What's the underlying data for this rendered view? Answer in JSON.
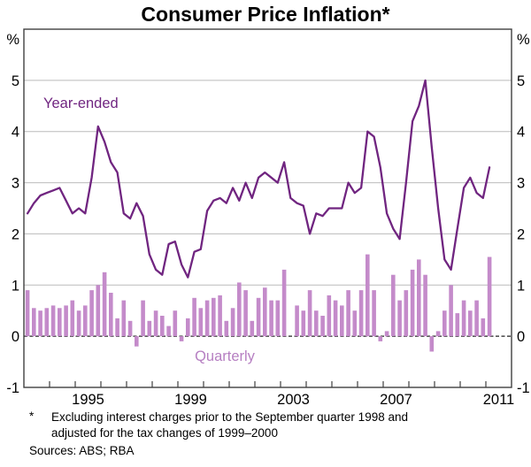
{
  "title": "Consumer Price Inflation*",
  "axes": {
    "y_unit_left": "%",
    "y_unit_right": "%",
    "y_tick_values": [
      5,
      4,
      3,
      2,
      1,
      0,
      -1
    ],
    "ylim": [
      -1,
      6
    ],
    "x_range_years": [
      1993,
      2012
    ],
    "x_tick_label_years": [
      1995,
      1999,
      2003,
      2007,
      2011
    ]
  },
  "series_labels": {
    "line": "Year-ended",
    "bar": "Quarterly"
  },
  "colors": {
    "line": "#702580",
    "bar": "#c48bca",
    "bar_label": "#b67fc2",
    "grid": "#bbbbbb",
    "frame": "#404040",
    "zero_line": "#222222",
    "text": "#000000"
  },
  "footnote": {
    "marker": "*",
    "line1": "Excluding interest charges prior to the September quarter 1998 and",
    "line2": "adjusted for the tax changes of 1999–2000",
    "sources": "Sources: ABS; RBA"
  },
  "chart_data": {
    "type": "bar+line",
    "title": "Consumer Price Inflation*",
    "x_quarters_start": "1993Q1",
    "x_quarters_end": "2011Q1",
    "x_points": 73,
    "ylabel": "%",
    "ylim": [
      -1,
      6
    ],
    "grid": "horizontal",
    "legend_position": "inline-annotations",
    "series": [
      {
        "name": "Year-ended",
        "type": "line",
        "units": "% year-ended inflation",
        "values": [
          2.4,
          2.6,
          2.75,
          2.8,
          2.85,
          2.9,
          2.65,
          2.4,
          2.5,
          2.4,
          3.1,
          4.1,
          3.8,
          3.4,
          3.2,
          2.4,
          2.3,
          2.6,
          2.35,
          1.6,
          1.3,
          1.2,
          1.8,
          1.85,
          1.4,
          1.15,
          1.65,
          1.7,
          2.45,
          2.65,
          2.7,
          2.6,
          2.9,
          2.65,
          3.0,
          2.7,
          3.1,
          3.2,
          3.1,
          3.0,
          3.4,
          2.7,
          2.6,
          2.55,
          2.0,
          2.4,
          2.35,
          2.5,
          2.5,
          2.5,
          3.0,
          2.8,
          2.9,
          4.0,
          3.9,
          3.3,
          2.4,
          2.1,
          1.9,
          3.0,
          4.2,
          4.5,
          5.0,
          3.7,
          2.5,
          1.5,
          1.3,
          2.1,
          2.9,
          3.1,
          2.8,
          2.7,
          3.3
        ]
      },
      {
        "name": "Quarterly",
        "type": "bar",
        "units": "% quarterly inflation",
        "values": [
          0.9,
          0.55,
          0.5,
          0.55,
          0.6,
          0.55,
          0.6,
          0.7,
          0.5,
          0.6,
          0.9,
          1.0,
          1.25,
          0.85,
          0.35,
          0.7,
          0.3,
          -0.2,
          0.7,
          0.3,
          0.5,
          0.4,
          0.2,
          0.5,
          -0.1,
          0.35,
          0.75,
          0.55,
          0.7,
          0.75,
          0.8,
          0.3,
          0.55,
          1.05,
          0.9,
          0.3,
          0.75,
          0.95,
          0.7,
          0.7,
          1.3,
          0.0,
          0.6,
          0.5,
          0.9,
          0.5,
          0.4,
          0.8,
          0.7,
          0.6,
          0.9,
          0.5,
          0.9,
          1.6,
          0.9,
          -0.1,
          0.1,
          1.2,
          0.7,
          0.9,
          1.3,
          1.5,
          1.2,
          -0.3,
          0.1,
          0.5,
          1.0,
          0.45,
          0.7,
          0.5,
          0.7,
          0.35,
          1.55
        ]
      }
    ]
  }
}
